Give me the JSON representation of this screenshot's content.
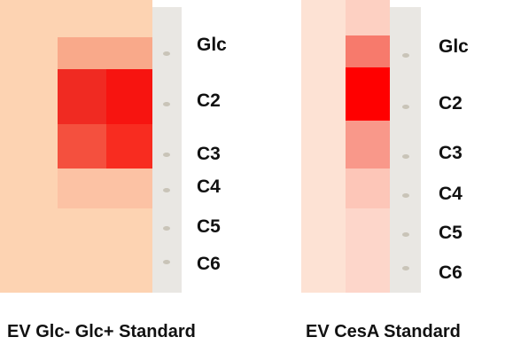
{
  "panels": [
    {
      "row_labels": [
        "Glc",
        "C2",
        "C3",
        "C4",
        "C5",
        "C6"
      ],
      "caption": "EV Glc- Glc+ Standard"
    },
    {
      "row_labels": [
        "Glc",
        "C2",
        "C3",
        "C4",
        "C5",
        "C6"
      ],
      "caption": "EV CesA Standard"
    }
  ]
}
